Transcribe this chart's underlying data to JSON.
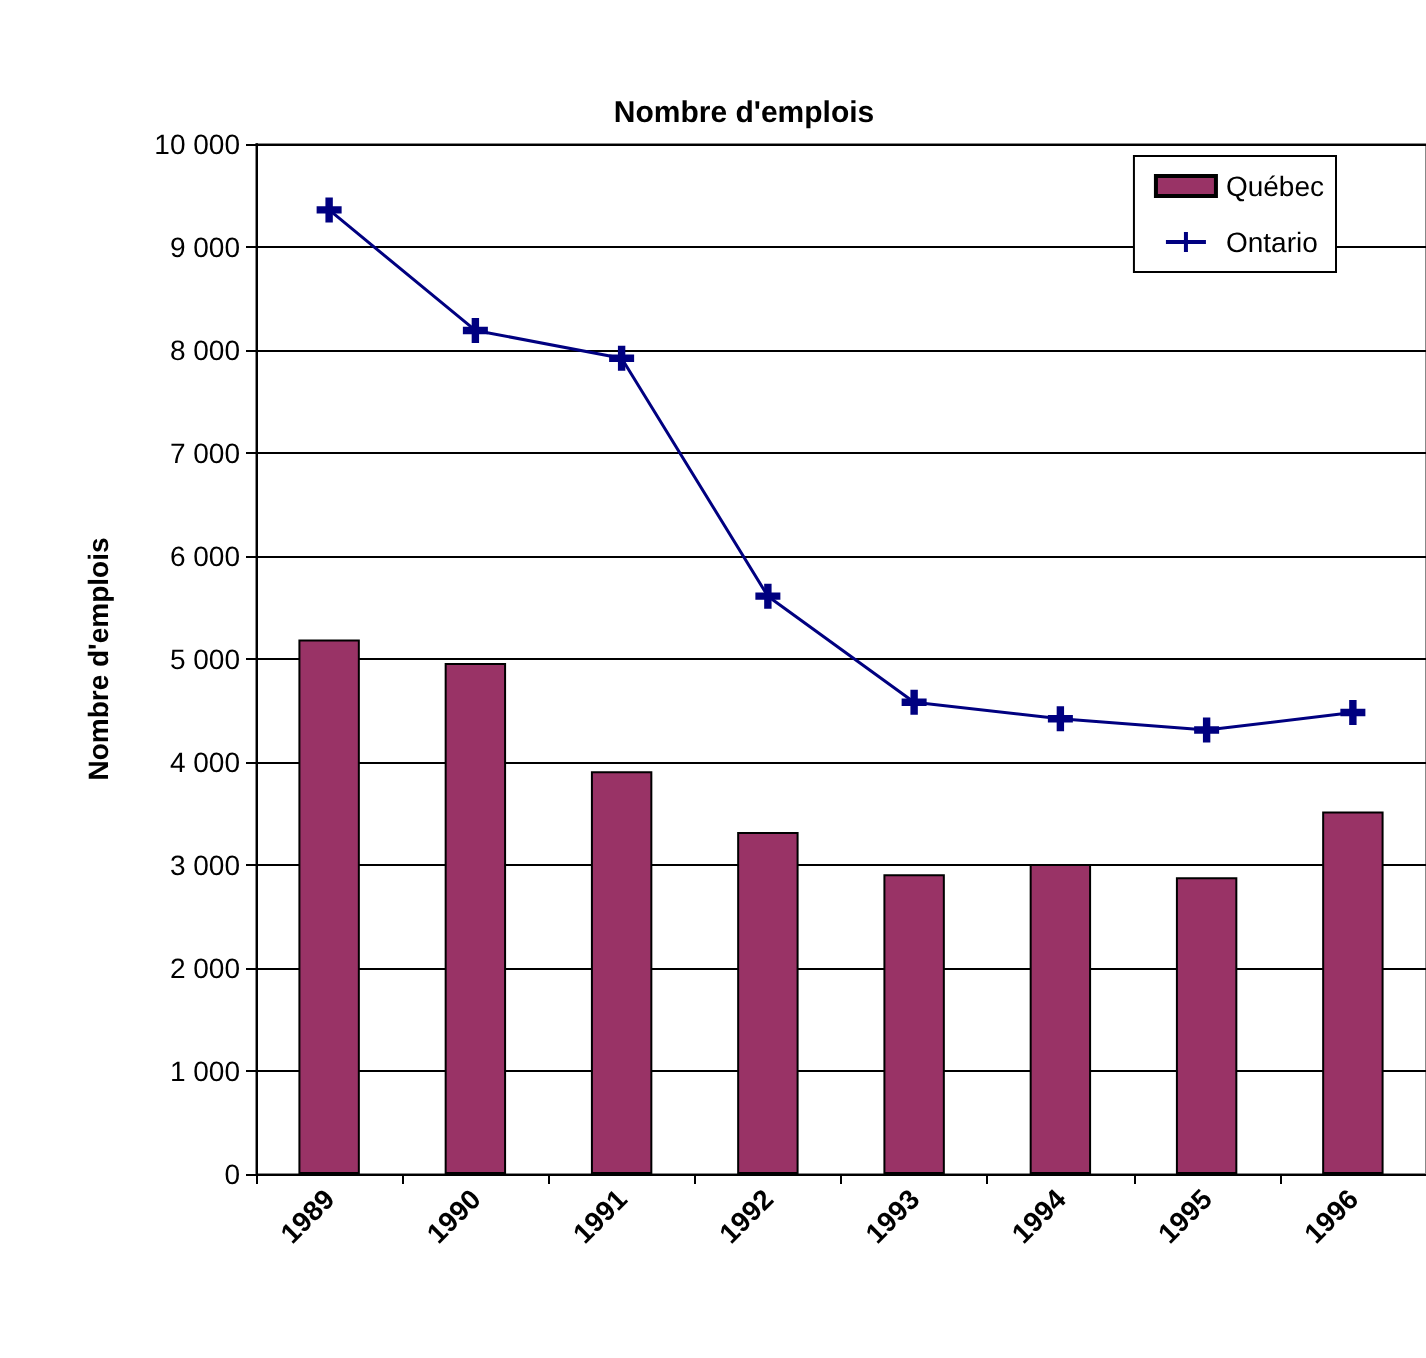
{
  "chart_data": {
    "type": "bar",
    "title": "Nombre d'emplois",
    "ylabel": "Nombre d'emplois",
    "categories": [
      "1989",
      "1990",
      "1991",
      "1992",
      "1993",
      "1994",
      "1995",
      "1996"
    ],
    "series": [
      {
        "name": "Québec",
        "color": "#993366",
        "values": [
          5190,
          4960,
          3910,
          3320,
          2910,
          3010,
          2880,
          3520
        ]
      },
      {
        "name": "Ontario",
        "type": "line",
        "color": "#000080",
        "marker": "cross",
        "values": [
          9360,
          8190,
          7920,
          5610,
          4580,
          4420,
          4310,
          4480
        ]
      }
    ],
    "ylim": [
      0,
      10000
    ],
    "yticks": [
      {
        "value": 0,
        "label": "0"
      },
      {
        "value": 1000,
        "label": "1 000"
      },
      {
        "value": 2000,
        "label": "2 000"
      },
      {
        "value": 3000,
        "label": "3 000"
      },
      {
        "value": 4000,
        "label": "4 000"
      },
      {
        "value": 5000,
        "label": "5 000"
      },
      {
        "value": 6000,
        "label": "6 000"
      },
      {
        "value": 7000,
        "label": "7 000"
      },
      {
        "value": 8000,
        "label": "8 000"
      },
      {
        "value": 9000,
        "label": "9 000"
      },
      {
        "value": 10000,
        "label": "10 000"
      }
    ],
    "grid": "y",
    "legend": "top right"
  }
}
